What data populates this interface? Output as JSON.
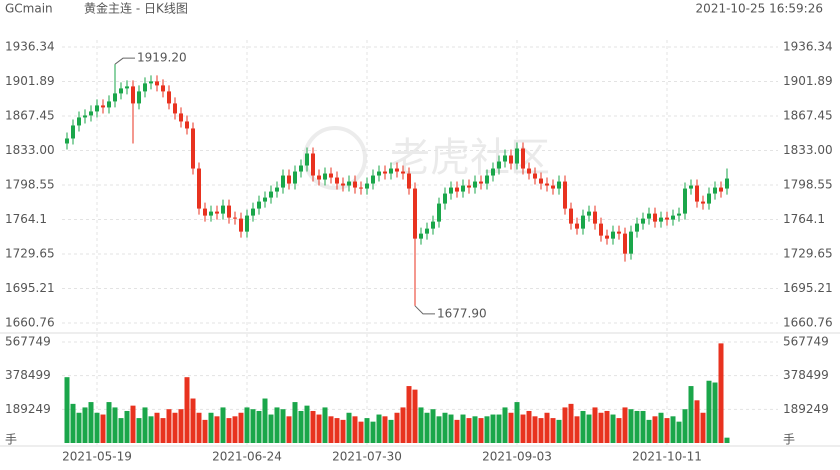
{
  "header": {
    "symbol": "GCmain",
    "name": "黄金主连 - 日K线图",
    "time": "2021-10-25 16:59:26"
  },
  "chart_data": {
    "type": "candlestick",
    "watermark": "老虎社区",
    "max_label": "1919.20",
    "min_label": "1677.90",
    "volume_unit": "手",
    "up_color": "#1aa64a",
    "down_color": "#e8321f",
    "categories": [
      null,
      null,
      null,
      null,
      null,
      "2021-05-19",
      null,
      null,
      null,
      null,
      null,
      null,
      null,
      null,
      null,
      null,
      null,
      null,
      null,
      null,
      null,
      null,
      null,
      null,
      null,
      null,
      null,
      null,
      null,
      null,
      "2021-06-24",
      null,
      null,
      null,
      null,
      null,
      null,
      null,
      null,
      null,
      null,
      null,
      null,
      null,
      null,
      null,
      null,
      null,
      null,
      null,
      "2021-07-30",
      null,
      null,
      null,
      null,
      null,
      null,
      null,
      null,
      null,
      null,
      null,
      null,
      null,
      null,
      null,
      null,
      null,
      null,
      null,
      null,
      null,
      null,
      null,
      null,
      "2021-09-03",
      null,
      null,
      null,
      null,
      null,
      null,
      null,
      null,
      null,
      null,
      null,
      null,
      null,
      null,
      null,
      null,
      null,
      null,
      null,
      null,
      null,
      null,
      null,
      null,
      "2021-10-11",
      null,
      null,
      null,
      null,
      null,
      null,
      null,
      null,
      null,
      null
    ],
    "open": [
      1840,
      1845,
      1858,
      1866,
      1868,
      1872,
      1878,
      1876,
      1882,
      1890,
      1895,
      1897,
      1880,
      1892,
      1900,
      1902,
      1898,
      1892,
      1880,
      1870,
      1862,
      1855,
      1815,
      1775,
      1768,
      1772,
      1770,
      1778,
      1766,
      1765,
      1752,
      1768,
      1775,
      1782,
      1786,
      1792,
      1796,
      1808,
      1800,
      1812,
      1818,
      1830,
      1808,
      1804,
      1810,
      1806,
      1800,
      1798,
      1802,
      1796,
      1795,
      1800,
      1808,
      1812,
      1810,
      1815,
      1812,
      1810,
      1795,
      1745,
      1750,
      1755,
      1762,
      1780,
      1790,
      1796,
      1792,
      1798,
      1796,
      1802,
      1800,
      1808,
      1815,
      1822,
      1828,
      1820,
      1835,
      1815,
      1810,
      1805,
      1800,
      1798,
      1795,
      1802,
      1775,
      1760,
      1755,
      1768,
      1772,
      1760,
      1748,
      1745,
      1752,
      1750,
      1730,
      1752,
      1760,
      1765,
      1770,
      1762,
      1766,
      1764,
      1768,
      1770,
      1795,
      1798,
      1782,
      1780,
      1790,
      1796,
      1795
    ],
    "high": [
      1851,
      1864,
      1872,
      1874,
      1878,
      1884,
      1884,
      1888,
      1919.2,
      1901,
      1903,
      1903,
      1898,
      1906,
      1908,
      1908,
      1904,
      1898,
      1886,
      1876,
      1868,
      1861,
      1821,
      1781,
      1778,
      1778,
      1784,
      1784,
      1772,
      1771,
      1774,
      1781,
      1788,
      1792,
      1798,
      1802,
      1814,
      1814,
      1818,
      1824,
      1836,
      1836,
      1814,
      1816,
      1816,
      1812,
      1806,
      1808,
      1808,
      1802,
      1806,
      1814,
      1818,
      1818,
      1821,
      1821,
      1818,
      1816,
      1801,
      1756,
      1761,
      1768,
      1786,
      1796,
      1802,
      1802,
      1804,
      1804,
      1808,
      1808,
      1814,
      1821,
      1828,
      1834,
      1834,
      1841,
      1841,
      1821,
      1816,
      1811,
      1806,
      1804,
      1808,
      1808,
      1781,
      1766,
      1774,
      1778,
      1778,
      1766,
      1754,
      1758,
      1758,
      1756,
      1758,
      1766,
      1771,
      1776,
      1776,
      1772,
      1772,
      1774,
      1776,
      1801,
      1804,
      1804,
      1788,
      1796,
      1802,
      1802,
      1815
    ],
    "low": [
      1834,
      1839,
      1852,
      1860,
      1862,
      1866,
      1870,
      1870,
      1876,
      1884,
      1889,
      1840,
      1874,
      1886,
      1894,
      1892,
      1886,
      1874,
      1864,
      1856,
      1849,
      1809,
      1769,
      1762,
      1762,
      1764,
      1764,
      1760,
      1759,
      1746,
      1746,
      1762,
      1769,
      1776,
      1780,
      1786,
      1790,
      1794,
      1794,
      1806,
      1812,
      1802,
      1798,
      1798,
      1800,
      1794,
      1792,
      1792,
      1790,
      1789,
      1789,
      1794,
      1802,
      1804,
      1804,
      1806,
      1804,
      1789,
      1677.9,
      1739,
      1744,
      1749,
      1756,
      1774,
      1784,
      1786,
      1786,
      1790,
      1790,
      1794,
      1794,
      1802,
      1809,
      1816,
      1814,
      1814,
      1809,
      1804,
      1799,
      1794,
      1792,
      1789,
      1789,
      1769,
      1754,
      1749,
      1749,
      1762,
      1754,
      1742,
      1739,
      1739,
      1744,
      1722,
      1724,
      1746,
      1754,
      1759,
      1756,
      1756,
      1758,
      1758,
      1762,
      1764,
      1789,
      1776,
      1774,
      1774,
      1784,
      1786,
      1789
    ],
    "close": [
      1845,
      1858,
      1866,
      1868,
      1872,
      1878,
      1876,
      1882,
      1890,
      1895,
      1897,
      1880,
      1892,
      1900,
      1902,
      1898,
      1892,
      1880,
      1870,
      1862,
      1855,
      1815,
      1775,
      1768,
      1772,
      1770,
      1778,
      1766,
      1765,
      1752,
      1768,
      1775,
      1782,
      1786,
      1792,
      1796,
      1808,
      1800,
      1812,
      1818,
      1830,
      1808,
      1804,
      1810,
      1806,
      1800,
      1798,
      1802,
      1796,
      1795,
      1800,
      1808,
      1812,
      1810,
      1815,
      1812,
      1810,
      1795,
      1745,
      1750,
      1755,
      1762,
      1780,
      1790,
      1796,
      1792,
      1798,
      1796,
      1802,
      1800,
      1808,
      1815,
      1822,
      1828,
      1820,
      1835,
      1815,
      1810,
      1805,
      1800,
      1798,
      1795,
      1802,
      1775,
      1760,
      1755,
      1768,
      1772,
      1760,
      1748,
      1745,
      1752,
      1750,
      1730,
      1752,
      1760,
      1765,
      1770,
      1762,
      1766,
      1764,
      1768,
      1770,
      1795,
      1798,
      1782,
      1780,
      1790,
      1796,
      1792,
      1805
    ],
    "volume": [
      370000,
      220000,
      170000,
      200000,
      230000,
      170000,
      160000,
      230000,
      200000,
      140000,
      180000,
      210000,
      140000,
      200000,
      150000,
      170000,
      140000,
      190000,
      170000,
      190000,
      370000,
      250000,
      170000,
      130000,
      170000,
      150000,
      200000,
      140000,
      150000,
      170000,
      200000,
      190000,
      180000,
      250000,
      160000,
      200000,
      190000,
      150000,
      230000,
      180000,
      210000,
      180000,
      160000,
      200000,
      150000,
      140000,
      130000,
      170000,
      150000,
      120000,
      140000,
      120000,
      160000,
      150000,
      130000,
      170000,
      200000,
      320000,
      300000,
      200000,
      170000,
      190000,
      150000,
      170000,
      160000,
      130000,
      160000,
      140000,
      150000,
      140000,
      150000,
      160000,
      160000,
      200000,
      170000,
      230000,
      160000,
      180000,
      150000,
      140000,
      170000,
      140000,
      130000,
      200000,
      220000,
      150000,
      180000,
      160000,
      200000,
      170000,
      180000,
      160000,
      140000,
      200000,
      190000,
      180000,
      180000,
      130000,
      150000,
      170000,
      140000,
      150000,
      120000,
      190000,
      320000,
      240000,
      170000,
      350000,
      340000,
      560000,
      30000
    ],
    "ylim": [
      1660.76,
      1936.34
    ],
    "yticks": [
      1936.34,
      1901.89,
      1867.45,
      {
        "value": 1833,
        "label": "1833.00"
      },
      1798.55,
      1764.1,
      {
        "value": 1729.65,
        "label": "1729.65"
      },
      1695.21,
      1660.76
    ],
    "vlim": [
      0,
      567749
    ],
    "vticks": [
      567749,
      378499,
      189249
    ],
    "grid": true
  }
}
